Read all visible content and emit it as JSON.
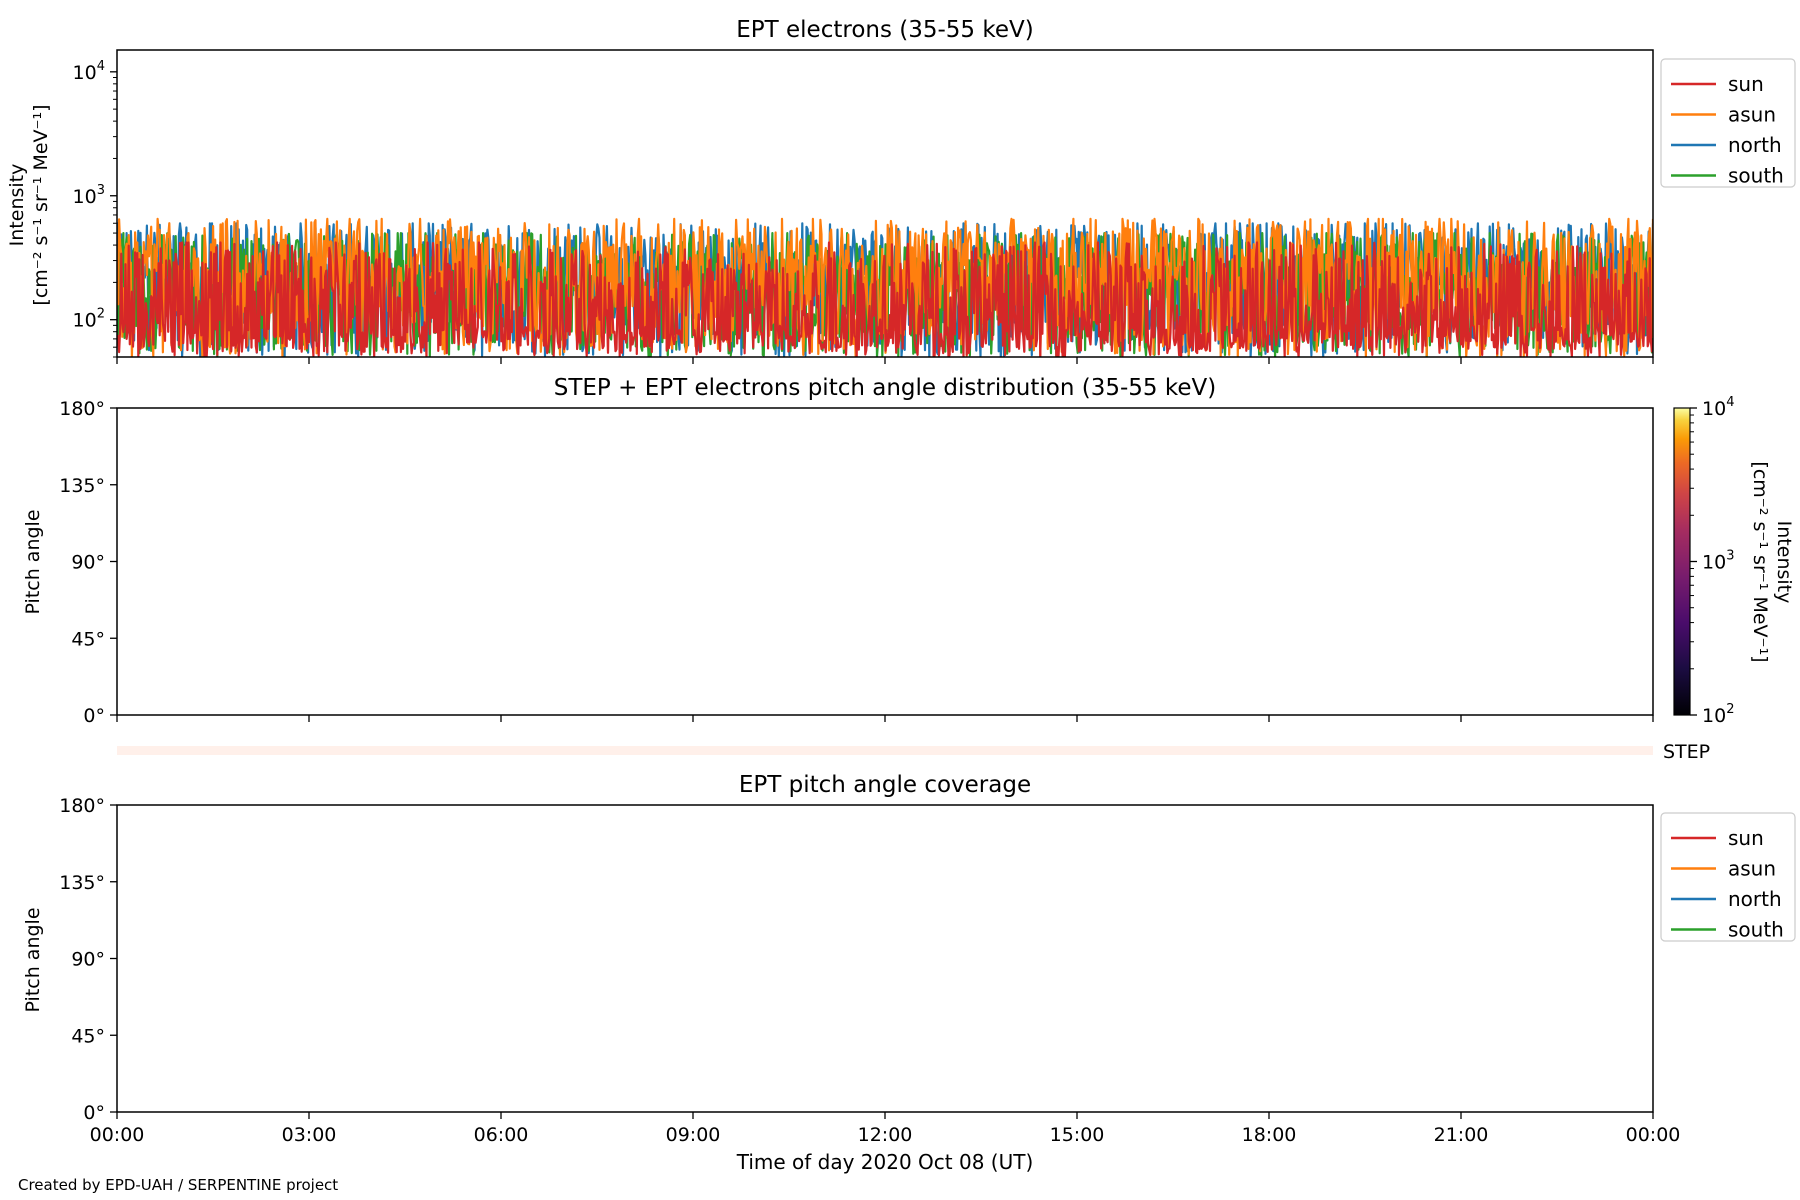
{
  "footer": {
    "credit": "Created by EPD-UAH / SERPENTINE project"
  },
  "colors": {
    "sun": "#d62728",
    "asun": "#ff7f0e",
    "north": "#1f77b4",
    "south": "#2ca02c",
    "step_strip": "#fff0ea"
  },
  "chart_data": [
    {
      "type": "line",
      "title": "EPT electrons (35-55 keV)",
      "ylabel": [
        "Intensity",
        "[cm⁻² s⁻¹ sr⁻¹ MeV⁻¹]"
      ],
      "yscale": "log",
      "ylim": [
        50,
        15000
      ],
      "yticks": [
        {
          "value": 100,
          "base": "10",
          "exp": "2"
        },
        {
          "value": 1000,
          "base": "10",
          "exp": "3"
        },
        {
          "value": 10000,
          "base": "10",
          "exp": "4"
        }
      ],
      "xlim": [
        "2020-10-08 00:00",
        "2020-10-09 00:00"
      ],
      "legend": {
        "placement": "outside-right-top",
        "entries": [
          "sun",
          "asun",
          "north",
          "south"
        ]
      },
      "series": [
        {
          "name": "north",
          "min": 50,
          "max": 600,
          "median": 250
        },
        {
          "name": "south",
          "min": 50,
          "max": 500,
          "median": 220
        },
        {
          "name": "asun",
          "min": 50,
          "max": 650,
          "median": 270
        },
        {
          "name": "sun",
          "min": 50,
          "max": 420,
          "median": 120
        }
      ]
    },
    {
      "type": "heatmap",
      "title": "STEP + EPT electrons pitch angle distribution (35-55 keV)",
      "ylabel": "Pitch angle",
      "ylim": [
        0,
        180
      ],
      "yticks": [
        "0°",
        "45°",
        "90°",
        "135°",
        "180°"
      ],
      "colorbar": {
        "label": [
          "Intensity",
          "[cm⁻² s⁻¹ sr⁻¹ MeV⁻¹]"
        ],
        "scale": "log",
        "range": [
          100,
          10000
        ],
        "colormap": "inferno",
        "ticks": [
          {
            "value": 100,
            "base": "10",
            "exp": "2"
          },
          {
            "value": 1000,
            "base": "10",
            "exp": "3"
          },
          {
            "value": 10000,
            "base": "10",
            "exp": "4"
          }
        ]
      },
      "data": []
    },
    {
      "type": "heatmap",
      "title": "",
      "label": "STEP",
      "data": []
    },
    {
      "type": "line",
      "title": "EPT pitch angle coverage",
      "ylabel": "Pitch angle",
      "ylim": [
        0,
        180
      ],
      "yticks": [
        "0°",
        "45°",
        "90°",
        "135°",
        "180°"
      ],
      "xlabel": "Time of day 2020 Oct 08 (UT)",
      "xticks": [
        "00:00",
        "03:00",
        "06:00",
        "09:00",
        "12:00",
        "15:00",
        "18:00",
        "21:00",
        "00:00"
      ],
      "legend": {
        "placement": "outside-right-top",
        "entries": [
          "sun",
          "asun",
          "north",
          "south"
        ]
      },
      "series": [
        {
          "name": "sun",
          "values": []
        },
        {
          "name": "asun",
          "values": []
        },
        {
          "name": "north",
          "values": []
        },
        {
          "name": "south",
          "values": []
        }
      ]
    }
  ]
}
